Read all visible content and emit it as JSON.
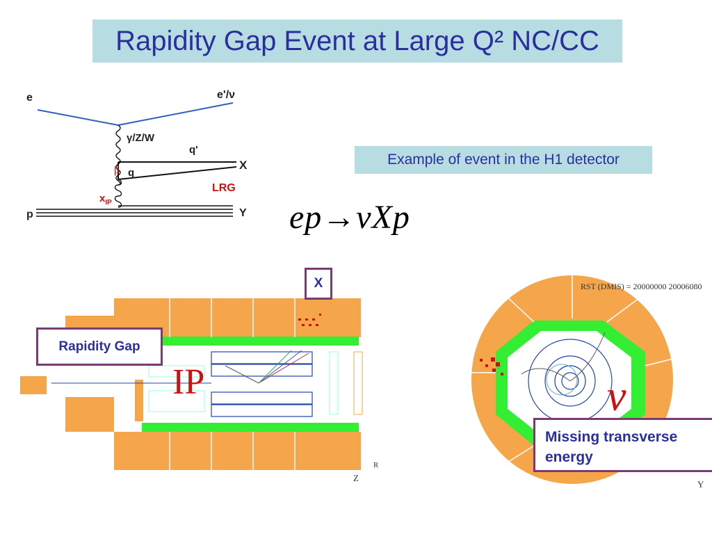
{
  "title": "Rapidity Gap Event at Large Q² NC/CC",
  "example_caption": "Example of event in the H1 detector",
  "reaction": "ep→νXp",
  "feynman": {
    "e": "e",
    "e_out": "e'/ν",
    "boson": "γ/Z/W",
    "q_prime": "q'",
    "q": "q",
    "beta": "β",
    "x": "X",
    "x_ip": "x",
    "x_ip_sub": "IP",
    "lrg": "LRG",
    "p": "p",
    "y": "Y"
  },
  "detector": {
    "rapidity_gap": "Rapidity Gap",
    "x_label": "X",
    "ip": "IP",
    "nu": "ν",
    "missing_et": [
      "Missing transverse",
      "energy"
    ],
    "rst": "RST (DMIS) = 20000000 20006080",
    "axis_z": "Z",
    "axis_r": "R",
    "axis_y": "Y"
  },
  "colors": {
    "title_bg": "#b7dde3",
    "title_text": "#2b2f9e",
    "calorimeter": "#f5a64a",
    "tracker_ring": "#33ee33",
    "callout_border": "#7a3a72",
    "red_label": "#cc1111"
  }
}
